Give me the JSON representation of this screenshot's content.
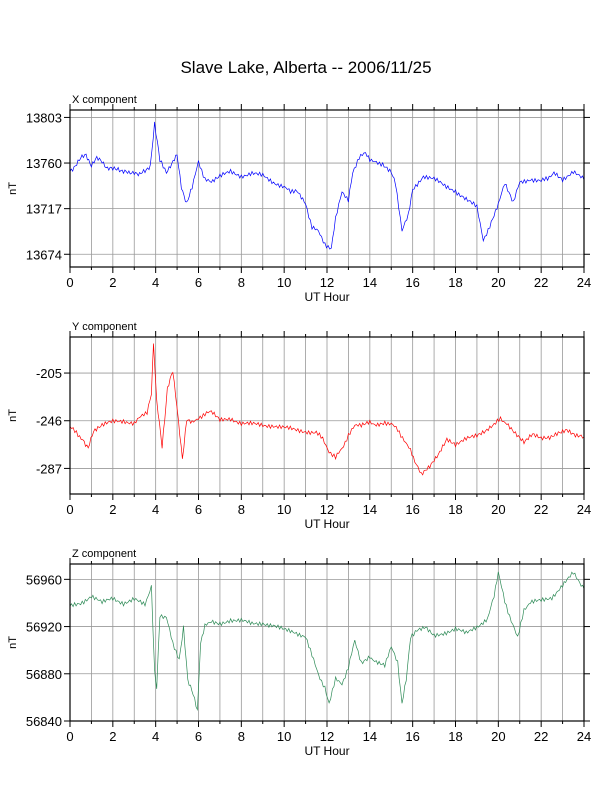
{
  "page": {
    "title": "Slave Lake, Alberta -- 2006/11/25"
  },
  "chart_data": [
    {
      "type": "line",
      "title": "X component",
      "xlabel": "UT Hour",
      "ylabel": "nT",
      "xlim": [
        0,
        24
      ],
      "ylim": [
        13662,
        13810
      ],
      "x_ticks": [
        0,
        2,
        4,
        6,
        8,
        10,
        12,
        14,
        16,
        18,
        20,
        22,
        24
      ],
      "y_ticks": [
        13674,
        13717,
        13760,
        13803
      ],
      "grid": true,
      "color": "#0000ff",
      "series": [
        {
          "x": [
            0,
            0.25,
            0.5,
            0.75,
            1,
            1.25,
            1.5,
            1.75,
            2,
            2.25,
            2.5,
            2.75,
            3,
            3.25,
            3.5,
            3.75,
            3.95,
            4.2,
            4.5,
            4.75,
            5,
            5.2,
            5.45,
            5.7,
            6,
            6.3,
            6.6,
            7,
            7.5,
            8,
            8.5,
            9,
            9.5,
            10,
            10.3,
            10.6,
            11,
            11.3,
            11.6,
            11.9,
            12.2,
            12.4,
            12.7,
            13,
            13.2,
            13.5,
            13.8,
            14,
            14.3,
            14.6,
            15,
            15.2,
            15.5,
            15.8,
            16,
            16.5,
            17,
            17.5,
            18,
            18.3,
            18.7,
            19,
            19.3,
            19.6,
            20,
            20.3,
            20.7,
            21,
            21.5,
            22,
            22.3,
            22.6,
            23,
            23.5,
            24
          ],
          "values": [
            13752,
            13758,
            13764,
            13768,
            13758,
            13764,
            13762,
            13755,
            13754,
            13755,
            13752,
            13750,
            13752,
            13749,
            13752,
            13758,
            13798,
            13762,
            13752,
            13758,
            13768,
            13738,
            13722,
            13736,
            13762,
            13745,
            13741,
            13747,
            13752,
            13748,
            13750,
            13748,
            13742,
            13738,
            13732,
            13735,
            13722,
            13700,
            13695,
            13684,
            13679,
            13708,
            13732,
            13726,
            13752,
            13765,
            13769,
            13762,
            13762,
            13758,
            13752,
            13742,
            13695,
            13712,
            13735,
            13748,
            13745,
            13738,
            13734,
            13728,
            13724,
            13718,
            13688,
            13700,
            13722,
            13740,
            13722,
            13742,
            13745,
            13743,
            13745,
            13752,
            13745,
            13752,
            13744
          ]
        }
      ]
    },
    {
      "type": "line",
      "title": "Y component",
      "xlabel": "UT Hour",
      "ylabel": "nT",
      "xlim": [
        0,
        24
      ],
      "ylim": [
        -309,
        -174
      ],
      "x_ticks": [
        0,
        2,
        4,
        6,
        8,
        10,
        12,
        14,
        16,
        18,
        20,
        22,
        24
      ],
      "y_ticks": [
        -205,
        -246,
        -287
      ],
      "grid": true,
      "color": "#ff0000",
      "series": [
        {
          "x": [
            0,
            0.3,
            0.6,
            0.85,
            1.1,
            1.5,
            2,
            2.5,
            3,
            3.3,
            3.6,
            3.8,
            3.9,
            4.05,
            4.3,
            4.55,
            4.8,
            5,
            5.25,
            5.45,
            5.7,
            6,
            6.3,
            6.6,
            7,
            7.5,
            8,
            8.5,
            9,
            9.5,
            10,
            10.5,
            11,
            11.5,
            11.8,
            12.1,
            12.4,
            12.7,
            13,
            13.3,
            13.6,
            14,
            14.3,
            14.7,
            15,
            15.3,
            15.6,
            15.9,
            16.1,
            16.4,
            16.8,
            17.2,
            17.6,
            18,
            18.5,
            19,
            19.4,
            19.8,
            20.1,
            20.4,
            20.8,
            21.2,
            21.6,
            22,
            22.4,
            22.8,
            23.2,
            23.6,
            24
          ],
          "values": [
            -252,
            -256,
            -262,
            -269,
            -256,
            -250,
            -247,
            -246,
            -248,
            -243,
            -238,
            -222,
            -180,
            -230,
            -268,
            -218,
            -204,
            -236,
            -278,
            -244,
            -248,
            -243,
            -241,
            -238,
            -246,
            -244,
            -248,
            -249,
            -250,
            -250,
            -252,
            -254,
            -255,
            -256,
            -262,
            -272,
            -278,
            -270,
            -258,
            -251,
            -249,
            -247,
            -249,
            -247,
            -249,
            -254,
            -262,
            -272,
            -282,
            -292,
            -286,
            -276,
            -262,
            -266,
            -262,
            -259,
            -256,
            -250,
            -244,
            -248,
            -256,
            -264,
            -258,
            -262,
            -261,
            -256,
            -253,
            -258,
            -260
          ]
        }
      ]
    },
    {
      "type": "line",
      "title": "Z component",
      "xlabel": "UT Hour",
      "ylabel": "nT",
      "xlim": [
        0,
        24
      ],
      "ylim": [
        56840,
        56973
      ],
      "x_ticks": [
        0,
        2,
        4,
        6,
        8,
        10,
        12,
        14,
        16,
        18,
        20,
        22,
        24
      ],
      "y_ticks": [
        56840,
        56880,
        56920,
        56960
      ],
      "grid": true,
      "color": "#2e8b57",
      "series": [
        {
          "x": [
            0,
            0.5,
            1,
            1.5,
            2,
            2.5,
            3,
            3.5,
            3.8,
            3.95,
            4.05,
            4.2,
            4.5,
            4.8,
            5.1,
            5.3,
            5.5,
            5.75,
            5.95,
            6.1,
            6.3,
            6.6,
            7,
            7.5,
            8,
            8.5,
            9,
            9.5,
            10,
            10.5,
            11,
            11.3,
            11.6,
            11.9,
            12.1,
            12.4,
            12.7,
            13,
            13.3,
            13.6,
            14,
            14.3,
            14.7,
            15,
            15.3,
            15.5,
            15.7,
            15.9,
            16.2,
            16.6,
            17,
            17.5,
            18,
            18.5,
            19,
            19.5,
            19.8,
            20,
            20.3,
            20.6,
            20.9,
            21.2,
            21.5,
            22,
            22.5,
            23,
            23.5,
            23.8,
            24
          ],
          "values": [
            56937,
            56940,
            56946,
            56940,
            56944,
            56940,
            56943,
            56938,
            56955,
            56882,
            56868,
            56930,
            56928,
            56905,
            56893,
            56920,
            56875,
            56862,
            56848,
            56905,
            56920,
            56925,
            56922,
            56926,
            56925,
            56922,
            56923,
            56921,
            56917,
            56915,
            56912,
            56895,
            56880,
            56868,
            56855,
            56875,
            56872,
            56885,
            56908,
            56890,
            56895,
            56890,
            56888,
            56902,
            56890,
            56855,
            56875,
            56910,
            56918,
            56920,
            56912,
            56915,
            56918,
            56914,
            56920,
            56927,
            56945,
            56965,
            56942,
            56925,
            56910,
            56935,
            56940,
            56942,
            56945,
            56955,
            56965,
            56958,
            56952
          ]
        }
      ]
    }
  ]
}
